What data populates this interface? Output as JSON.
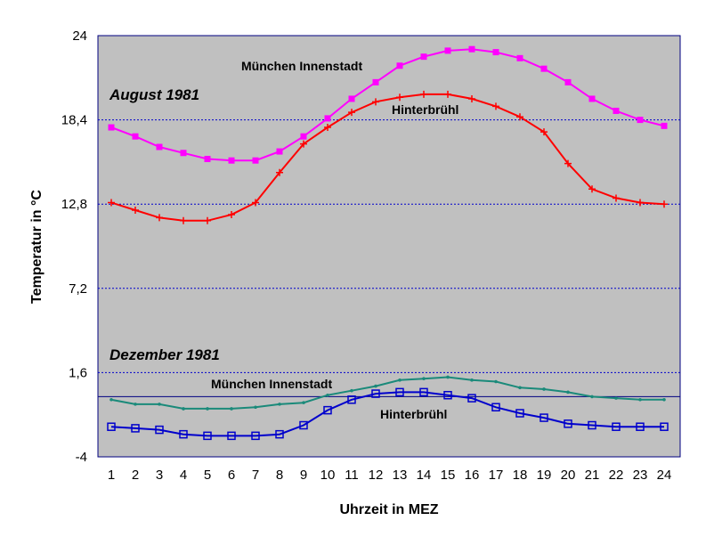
{
  "chart_data": {
    "type": "line",
    "xlabel": "Uhrzeit in MEZ",
    "ylabel": "Temperatur in °C",
    "x": [
      1,
      2,
      3,
      4,
      5,
      6,
      7,
      8,
      9,
      10,
      11,
      12,
      13,
      14,
      15,
      16,
      17,
      18,
      19,
      20,
      21,
      22,
      23,
      24
    ],
    "xticks": [
      "1",
      "2",
      "3",
      "4",
      "5",
      "6",
      "7",
      "8",
      "9",
      "10",
      "11",
      "12",
      "13",
      "14",
      "15",
      "16",
      "17",
      "18",
      "19",
      "20",
      "21",
      "22",
      "23",
      "24"
    ],
    "ylim": [
      -4,
      24
    ],
    "yticks": [
      "-4",
      "1,6",
      "7,2",
      "12,8",
      "18,4",
      "24"
    ],
    "ytick_values": [
      -4,
      1.6,
      7.2,
      12.8,
      18.4,
      24
    ],
    "grid": true,
    "plot_background": "#c0c0c0",
    "zero_line": 0,
    "annotations": [
      {
        "text": "August 1981",
        "kind": "group-title"
      },
      {
        "text": "Dezember 1981",
        "kind": "group-title"
      },
      {
        "text": "München Innenstadt",
        "kind": "series-label",
        "series": 0
      },
      {
        "text": "Hinterbrühl",
        "kind": "series-label",
        "series": 1
      },
      {
        "text": "München Innenstadt",
        "kind": "series-label",
        "series": 2
      },
      {
        "text": "Hinterbrühl",
        "kind": "series-label",
        "series": 3
      }
    ],
    "series": [
      {
        "name": "München Innenstadt",
        "group": "August 1981",
        "color": "#ff00ff",
        "marker": "filled-square",
        "values": [
          17.9,
          17.3,
          16.6,
          16.2,
          15.8,
          15.7,
          15.7,
          16.3,
          17.3,
          18.5,
          19.8,
          20.9,
          22.0,
          22.6,
          23.0,
          23.1,
          22.9,
          22.5,
          21.8,
          20.9,
          19.8,
          19.0,
          18.4,
          18.0
        ]
      },
      {
        "name": "Hinterbrühl",
        "group": "August 1981",
        "color": "#ff0000",
        "marker": "plus",
        "values": [
          12.9,
          12.4,
          11.9,
          11.7,
          11.7,
          12.1,
          12.9,
          14.9,
          16.8,
          17.9,
          18.9,
          19.6,
          19.9,
          20.1,
          20.1,
          19.8,
          19.3,
          18.6,
          17.6,
          15.5,
          13.8,
          13.2,
          12.9,
          12.8
        ]
      },
      {
        "name": "München Innenstadt",
        "group": "Dezember 1981",
        "color": "#1a8a7a",
        "marker": "dot",
        "values": [
          -0.2,
          -0.5,
          -0.5,
          -0.8,
          -0.8,
          -0.8,
          -0.7,
          -0.5,
          -0.4,
          0.1,
          0.4,
          0.7,
          1.1,
          1.2,
          1.3,
          1.1,
          1.0,
          0.6,
          0.5,
          0.3,
          0.0,
          -0.1,
          -0.2,
          -0.2
        ]
      },
      {
        "name": "Hinterbrühl",
        "group": "Dezember 1981",
        "color": "#0000cc",
        "marker": "open-square",
        "values": [
          -2.0,
          -2.1,
          -2.2,
          -2.5,
          -2.6,
          -2.6,
          -2.6,
          -2.5,
          -1.9,
          -0.9,
          -0.2,
          0.2,
          0.3,
          0.3,
          0.1,
          -0.1,
          -0.7,
          -1.1,
          -1.4,
          -1.8,
          -1.9,
          -2.0,
          -2.0,
          -2.0
        ]
      }
    ]
  }
}
